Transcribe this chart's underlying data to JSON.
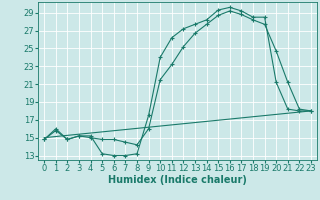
{
  "xlabel": "Humidex (Indice chaleur)",
  "background_color": "#cce8e8",
  "grid_color": "#ffffff",
  "line_color": "#1a7a6a",
  "xlim": [
    -0.5,
    23.5
  ],
  "ylim": [
    12.5,
    30.2
  ],
  "yticks": [
    13,
    15,
    17,
    19,
    21,
    23,
    25,
    27,
    29
  ],
  "xticks": [
    0,
    1,
    2,
    3,
    4,
    5,
    6,
    7,
    8,
    9,
    10,
    11,
    12,
    13,
    14,
    15,
    16,
    17,
    18,
    19,
    20,
    21,
    22,
    23
  ],
  "line1_x": [
    0,
    1,
    2,
    3,
    4,
    5,
    6,
    7,
    8,
    9,
    10,
    11,
    12,
    13,
    14,
    15,
    16,
    17,
    18,
    19,
    20,
    21,
    22,
    23
  ],
  "line1_y": [
    14.8,
    16.0,
    14.8,
    15.2,
    15.2,
    13.2,
    13.0,
    13.0,
    13.2,
    17.5,
    24.0,
    26.2,
    27.2,
    27.7,
    28.2,
    29.3,
    29.6,
    29.2,
    28.5,
    28.5,
    21.2,
    18.2,
    18.0,
    18.0
  ],
  "line2_x": [
    0,
    1,
    2,
    3,
    4,
    5,
    6,
    7,
    8,
    9,
    10,
    11,
    12,
    13,
    14,
    15,
    16,
    17,
    18,
    19,
    20,
    21,
    22,
    23
  ],
  "line2_y": [
    14.8,
    15.8,
    14.8,
    15.2,
    15.0,
    14.8,
    14.8,
    14.5,
    14.2,
    16.0,
    21.5,
    23.2,
    25.2,
    26.7,
    27.7,
    28.7,
    29.2,
    28.8,
    28.2,
    27.7,
    24.7,
    21.2,
    18.2,
    18.0
  ],
  "line3_x": [
    0,
    23
  ],
  "line3_y": [
    15.0,
    18.0
  ],
  "fontsize_ticks": 6,
  "fontsize_label": 7,
  "marker": "+"
}
